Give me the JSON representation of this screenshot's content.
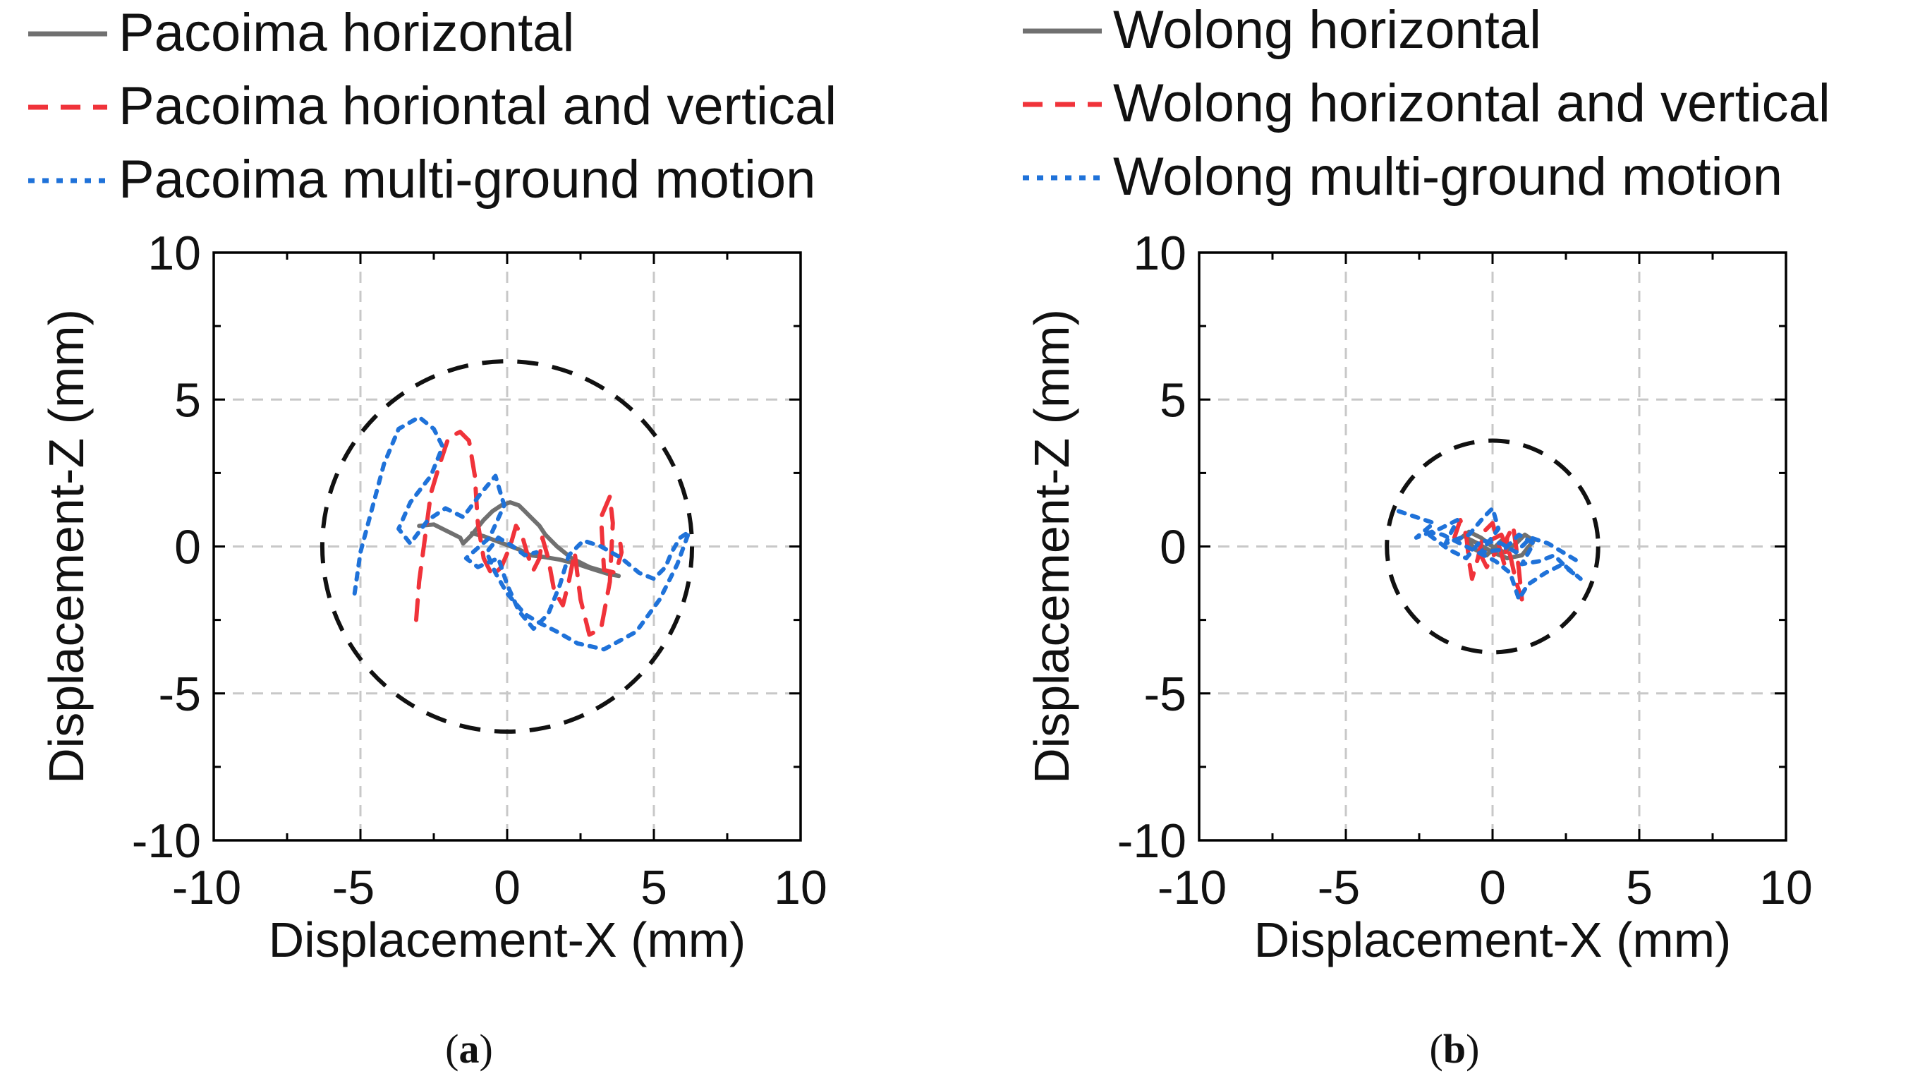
{
  "colors": {
    "horizontal": "#707070",
    "horizontal_vertical": "#f0333a",
    "multi_ground": "#1f72d9",
    "limit_circle": "#111111",
    "grid": "#c8c8c8"
  },
  "chart_data": [
    {
      "type": "line",
      "panel_id": "a",
      "caption_open": "(",
      "caption_letter": "a",
      "caption_close": ")",
      "xlabel": "Displacement-X (mm)",
      "ylabel": "Displacement-Z (mm)",
      "xlim": [
        -10,
        10
      ],
      "ylim": [
        -10,
        10
      ],
      "xticks": [
        -10,
        -5,
        0,
        5,
        10
      ],
      "yticks": [
        -10,
        -5,
        0,
        5,
        10
      ],
      "xtick_labels": [
        "-10",
        "-5",
        "0",
        "5",
        "10"
      ],
      "ytick_labels": [
        "-10",
        "-5",
        "0",
        "5",
        "10"
      ],
      "grid": true,
      "limit_circle": {
        "radius": 6.3,
        "center": [
          0,
          0
        ],
        "style": "dashed"
      },
      "series": [
        {
          "name": "Pacoima horizontal",
          "style": "solid",
          "points": [
            [
              -3,
              0.7
            ],
            [
              -2.5,
              0.75
            ],
            [
              -2,
              0.5
            ],
            [
              -1.6,
              0.3
            ],
            [
              -1.5,
              0.1
            ],
            [
              -1.2,
              0.4
            ],
            [
              -0.8,
              0.9
            ],
            [
              -0.5,
              1.2
            ],
            [
              -0.2,
              1.4
            ],
            [
              0.1,
              1.5
            ],
            [
              0.4,
              1.4
            ],
            [
              0.6,
              1.2
            ],
            [
              0.8,
              1.0
            ],
            [
              1.1,
              0.7
            ],
            [
              1.3,
              0.4
            ],
            [
              1.7,
              0.0
            ],
            [
              2.2,
              -0.4
            ],
            [
              2.8,
              -0.7
            ],
            [
              3.3,
              -0.85
            ],
            [
              3.8,
              -1.0
            ],
            [
              3.5,
              -0.95
            ],
            [
              3.0,
              -0.8
            ],
            [
              2.4,
              -0.6
            ],
            [
              1.8,
              -0.45
            ],
            [
              1.2,
              -0.35
            ],
            [
              0.8,
              -0.3
            ],
            [
              0.4,
              -0.1
            ],
            [
              0.0,
              0.05
            ],
            [
              -0.4,
              0.2
            ],
            [
              -0.8,
              0.35
            ],
            [
              -1.2,
              0.45
            ]
          ]
        },
        {
          "name": "Pacoima horiontal and vertical",
          "style": "dashed",
          "points": [
            [
              -3.1,
              -2.5
            ],
            [
              -3.0,
              -1.2
            ],
            [
              -2.8,
              0.3
            ],
            [
              -2.6,
              1.8
            ],
            [
              -2.3,
              2.8
            ],
            [
              -2.0,
              3.7
            ],
            [
              -1.6,
              3.9
            ],
            [
              -1.3,
              3.6
            ],
            [
              -1.1,
              2.4
            ],
            [
              -1.0,
              0.8
            ],
            [
              -0.8,
              -0.4
            ],
            [
              -0.5,
              -1.0
            ],
            [
              -0.2,
              -0.7
            ],
            [
              0.1,
              0.0
            ],
            [
              0.3,
              0.7
            ],
            [
              0.5,
              0.4
            ],
            [
              0.7,
              -0.3
            ],
            [
              0.9,
              -0.8
            ],
            [
              1.1,
              -0.4
            ],
            [
              1.2,
              0.3
            ],
            [
              1.4,
              -0.4
            ],
            [
              1.6,
              -1.5
            ],
            [
              1.9,
              -2.0
            ],
            [
              2.1,
              -1.2
            ],
            [
              2.3,
              -0.2
            ],
            [
              2.5,
              -1.8
            ],
            [
              2.8,
              -3.0
            ],
            [
              3.2,
              -2.8
            ],
            [
              3.5,
              -1.2
            ],
            [
              3.6,
              0.8
            ],
            [
              3.5,
              1.7
            ],
            [
              3.2,
              1.0
            ],
            [
              3.3,
              -0.8
            ],
            [
              3.7,
              -0.9
            ],
            [
              3.9,
              -0.2
            ],
            [
              3.8,
              0.5
            ]
          ]
        },
        {
          "name": "Pacoima multi-ground motion",
          "style": "dotted",
          "points": [
            [
              -5.2,
              -1.6
            ],
            [
              -5.0,
              -0.2
            ],
            [
              -4.6,
              1.3
            ],
            [
              -4.2,
              2.8
            ],
            [
              -3.7,
              4.0
            ],
            [
              -3.0,
              4.4
            ],
            [
              -2.5,
              4.0
            ],
            [
              -2.2,
              3.4
            ],
            [
              -2.6,
              2.4
            ],
            [
              -3.3,
              1.5
            ],
            [
              -3.7,
              0.6
            ],
            [
              -3.3,
              0.1
            ],
            [
              -2.7,
              0.9
            ],
            [
              -2.1,
              1.3
            ],
            [
              -1.5,
              1.0
            ],
            [
              -0.9,
              1.8
            ],
            [
              -0.4,
              2.4
            ],
            [
              -0.1,
              1.4
            ],
            [
              -0.6,
              0.3
            ],
            [
              -1.4,
              -0.4
            ],
            [
              -1.0,
              -0.7
            ],
            [
              -0.3,
              -0.4
            ],
            [
              0.0,
              -1.3
            ],
            [
              0.4,
              -2.2
            ],
            [
              0.9,
              -2.8
            ],
            [
              1.4,
              -2.3
            ],
            [
              1.8,
              -1.3
            ],
            [
              2.1,
              -0.3
            ],
            [
              2.6,
              0.2
            ],
            [
              3.2,
              0.0
            ],
            [
              3.9,
              -0.4
            ],
            [
              4.5,
              -0.9
            ],
            [
              5.0,
              -1.1
            ],
            [
              5.4,
              -0.7
            ],
            [
              5.6,
              -0.2
            ],
            [
              5.9,
              0.3
            ],
            [
              6.2,
              0.5
            ],
            [
              5.8,
              -0.6
            ],
            [
              5.2,
              -1.8
            ],
            [
              4.4,
              -2.9
            ],
            [
              3.3,
              -3.5
            ],
            [
              2.4,
              -3.3
            ],
            [
              1.7,
              -2.9
            ],
            [
              1.1,
              -2.6
            ],
            [
              0.6,
              -2.3
            ],
            [
              0.0,
              -1.6
            ],
            [
              -0.4,
              -0.9
            ],
            [
              -0.7,
              -0.2
            ],
            [
              -0.3,
              0.3
            ],
            [
              0.2,
              0.0
            ],
            [
              0.6,
              -0.3
            ],
            [
              1.0,
              -0.2
            ]
          ]
        }
      ],
      "legend": [
        {
          "label": "Pacoima horizontal",
          "style": "solid"
        },
        {
          "label": "Pacoima horiontal and vertical",
          "style": "dashed"
        },
        {
          "label": "Pacoima multi-ground motion",
          "style": "dotted"
        }
      ]
    },
    {
      "type": "line",
      "panel_id": "b",
      "caption_open": "(",
      "caption_letter": "b",
      "caption_close": ")",
      "xlabel": "Displacement-X (mm)",
      "ylabel": "Displacement-Z (mm)",
      "xlim": [
        -10,
        10
      ],
      "ylim": [
        -10,
        10
      ],
      "xticks": [
        -10,
        -5,
        0,
        5,
        10
      ],
      "yticks": [
        -10,
        -5,
        0,
        5,
        10
      ],
      "xtick_labels": [
        "-10",
        "-5",
        "0",
        "5",
        "10"
      ],
      "ytick_labels": [
        "-10",
        "-5",
        "0",
        "5",
        "10"
      ],
      "grid": true,
      "limit_circle": {
        "radius": 3.6,
        "center": [
          0,
          0
        ],
        "style": "dashed"
      },
      "series": [
        {
          "name": "Wolong horizontal",
          "style": "solid",
          "points": [
            [
              -1.2,
              0.2
            ],
            [
              -0.8,
              0.5
            ],
            [
              -0.4,
              0.3
            ],
            [
              0.0,
              0.0
            ],
            [
              0.4,
              -0.2
            ],
            [
              0.8,
              0.1
            ],
            [
              1.1,
              0.4
            ],
            [
              1.4,
              0.2
            ],
            [
              1.0,
              -0.3
            ],
            [
              0.5,
              -0.4
            ],
            [
              0.0,
              -0.2
            ],
            [
              -0.5,
              0.1
            ],
            [
              -0.9,
              0.3
            ],
            [
              -0.6,
              -0.1
            ],
            [
              -0.2,
              -0.3
            ],
            [
              0.3,
              0.2
            ]
          ]
        },
        {
          "name": "Wolong horizontal and vertical",
          "style": "dashed",
          "points": [
            [
              -1.3,
              0.3
            ],
            [
              -1.1,
              0.9
            ],
            [
              -0.9,
              0.4
            ],
            [
              -0.8,
              -0.5
            ],
            [
              -0.7,
              -1.1
            ],
            [
              -0.5,
              -0.4
            ],
            [
              -0.3,
              0.5
            ],
            [
              0.0,
              0.8
            ],
            [
              0.2,
              0.1
            ],
            [
              0.4,
              -0.6
            ],
            [
              0.5,
              0.3
            ],
            [
              0.7,
              0.7
            ],
            [
              0.8,
              0.0
            ],
            [
              0.9,
              -0.8
            ],
            [
              1.0,
              -1.8
            ],
            [
              0.8,
              -1.2
            ],
            [
              0.6,
              -0.3
            ],
            [
              0.3,
              0.4
            ],
            [
              -0.1,
              0.2
            ],
            [
              -0.4,
              -0.3
            ],
            [
              -0.2,
              -0.7
            ],
            [
              0.1,
              -0.2
            ]
          ]
        },
        {
          "name": "Wolong multi-ground motion",
          "style": "dotted",
          "points": [
            [
              -3.2,
              1.2
            ],
            [
              -2.6,
              1.0
            ],
            [
              -2.0,
              0.8
            ],
            [
              -2.6,
              0.3
            ],
            [
              -1.8,
              0.6
            ],
            [
              -1.2,
              0.9
            ],
            [
              -1.6,
              0.1
            ],
            [
              -0.8,
              0.4
            ],
            [
              -0.3,
              1.0
            ],
            [
              0.0,
              1.3
            ],
            [
              0.2,
              0.6
            ],
            [
              -0.4,
              -0.2
            ],
            [
              0.4,
              -0.1
            ],
            [
              0.9,
              0.4
            ],
            [
              1.4,
              0.1
            ],
            [
              1.0,
              -0.6
            ],
            [
              1.6,
              -0.5
            ],
            [
              2.1,
              -0.3
            ],
            [
              2.6,
              -0.8
            ],
            [
              3.0,
              -1.1
            ],
            [
              2.4,
              -0.6
            ],
            [
              1.8,
              -0.9
            ],
            [
              1.2,
              -1.3
            ],
            [
              0.9,
              -1.8
            ],
            [
              0.6,
              -0.9
            ],
            [
              0.1,
              -0.5
            ],
            [
              -0.5,
              -0.2
            ],
            [
              -1.1,
              0.1
            ],
            [
              -1.7,
              0.4
            ],
            [
              -2.3,
              0.5
            ],
            [
              -1.5,
              -0.1
            ],
            [
              -0.9,
              -0.4
            ],
            [
              -0.4,
              0.2
            ],
            [
              0.3,
              0.1
            ],
            [
              0.8,
              -0.2
            ],
            [
              1.3,
              0.3
            ],
            [
              1.9,
              0.1
            ],
            [
              2.4,
              -0.2
            ],
            [
              2.9,
              -0.5
            ]
          ]
        }
      ],
      "legend": [
        {
          "label": "Wolong horizontal",
          "style": "solid"
        },
        {
          "label": "Wolong horizontal and vertical",
          "style": "dashed"
        },
        {
          "label": "Wolong multi-ground motion",
          "style": "dotted"
        }
      ]
    }
  ]
}
